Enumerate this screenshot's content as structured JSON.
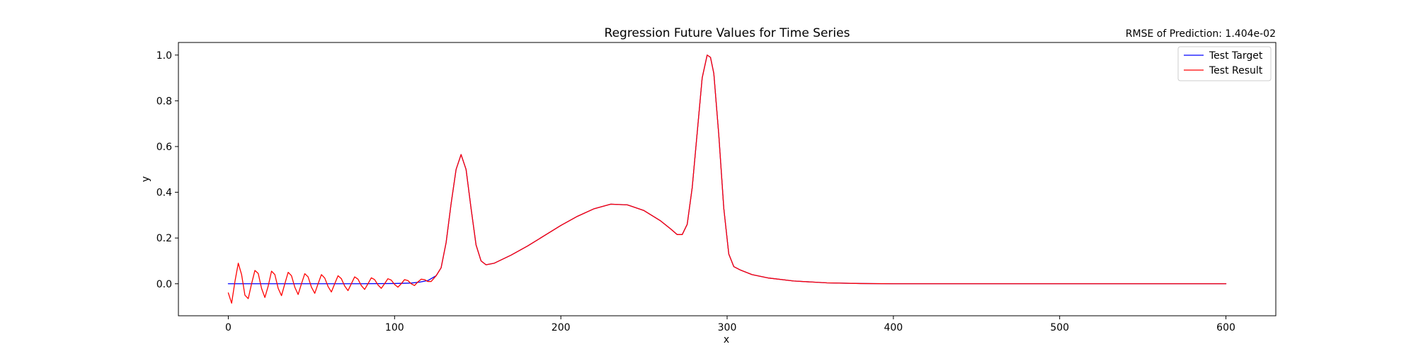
{
  "chart_data": {
    "type": "line",
    "title": "Regression Future Values for Time Series",
    "annotation": "RMSE of Prediction: 1.404e-02",
    "xlabel": "x",
    "ylabel": "y",
    "xlim": [
      -30,
      630
    ],
    "ylim": [
      -0.14,
      1.055
    ],
    "xticks": [
      0,
      100,
      200,
      300,
      400,
      500,
      600
    ],
    "xtick_labels": [
      "0",
      "100",
      "200",
      "300",
      "400",
      "500",
      "600"
    ],
    "yticks": [
      0.0,
      0.2,
      0.4,
      0.6,
      0.8,
      1.0
    ],
    "ytick_labels": [
      "0.0",
      "0.2",
      "0.4",
      "0.6",
      "0.8",
      "1.0"
    ],
    "grid": false,
    "legend_position": "top-right",
    "series": [
      {
        "name": "Test Target",
        "color": "#0000ff",
        "x": [
          0,
          20,
          40,
          60,
          80,
          100,
          110,
          115,
          120,
          125,
          128,
          131,
          134,
          137,
          140,
          143,
          146,
          149,
          152,
          155,
          160,
          170,
          180,
          190,
          200,
          210,
          220,
          230,
          240,
          250,
          260,
          266,
          270,
          273,
          276,
          279,
          282,
          285,
          288,
          290,
          292,
          295,
          298,
          301,
          304,
          308,
          315,
          325,
          340,
          360,
          380,
          400,
          450,
          500,
          550,
          600
        ],
        "y": [
          0.0,
          0.0,
          0.0,
          0.0,
          0.0,
          0.001,
          0.003,
          0.007,
          0.014,
          0.035,
          0.07,
          0.18,
          0.35,
          0.5,
          0.565,
          0.5,
          0.33,
          0.17,
          0.1,
          0.083,
          0.09,
          0.125,
          0.165,
          0.21,
          0.255,
          0.295,
          0.328,
          0.348,
          0.345,
          0.32,
          0.275,
          0.24,
          0.215,
          0.215,
          0.26,
          0.42,
          0.66,
          0.9,
          1.0,
          0.99,
          0.92,
          0.65,
          0.33,
          0.13,
          0.075,
          0.06,
          0.04,
          0.025,
          0.012,
          0.004,
          0.001,
          0.0,
          0.0,
          0.0,
          0.0,
          0.0
        ]
      },
      {
        "name": "Test Result",
        "color": "#ff0000",
        "x": [
          0,
          2,
          4,
          6,
          8,
          10,
          12,
          14,
          16,
          18,
          20,
          22,
          24,
          26,
          28,
          30,
          32,
          34,
          36,
          38,
          40,
          42,
          44,
          46,
          48,
          50,
          52,
          54,
          56,
          58,
          60,
          62,
          64,
          66,
          68,
          70,
          72,
          74,
          76,
          78,
          80,
          82,
          84,
          86,
          88,
          90,
          92,
          94,
          96,
          98,
          100,
          102,
          104,
          106,
          108,
          110,
          112,
          114,
          116,
          118,
          120,
          122,
          125,
          128,
          131,
          134,
          137,
          140,
          143,
          146,
          149,
          152,
          155,
          160,
          170,
          180,
          190,
          200,
          210,
          220,
          230,
          240,
          250,
          260,
          266,
          270,
          273,
          276,
          279,
          282,
          285,
          288,
          290,
          292,
          295,
          298,
          301,
          304,
          308,
          315,
          325,
          340,
          360,
          380,
          400,
          450,
          500,
          550,
          600
        ],
        "y": [
          -0.04,
          -0.085,
          0.01,
          0.09,
          0.04,
          -0.05,
          -0.065,
          0.0,
          0.058,
          0.045,
          -0.02,
          -0.06,
          -0.01,
          0.055,
          0.04,
          -0.02,
          -0.052,
          0.0,
          0.05,
          0.035,
          -0.015,
          -0.047,
          0.0,
          0.044,
          0.03,
          -0.015,
          -0.042,
          0.0,
          0.04,
          0.025,
          -0.012,
          -0.036,
          0.0,
          0.035,
          0.022,
          -0.01,
          -0.03,
          0.0,
          0.03,
          0.02,
          -0.008,
          -0.025,
          0.0,
          0.026,
          0.018,
          -0.005,
          -0.02,
          0.0,
          0.022,
          0.016,
          -0.003,
          -0.015,
          0.0,
          0.018,
          0.014,
          0.0,
          -0.008,
          0.008,
          0.02,
          0.018,
          0.01,
          0.01,
          0.035,
          0.07,
          0.18,
          0.35,
          0.5,
          0.565,
          0.5,
          0.33,
          0.17,
          0.1,
          0.083,
          0.09,
          0.125,
          0.165,
          0.21,
          0.255,
          0.295,
          0.328,
          0.348,
          0.345,
          0.32,
          0.275,
          0.24,
          0.215,
          0.215,
          0.26,
          0.42,
          0.66,
          0.9,
          1.0,
          0.99,
          0.92,
          0.65,
          0.33,
          0.13,
          0.075,
          0.06,
          0.04,
          0.025,
          0.012,
          0.004,
          0.001,
          0.0,
          0.0,
          0.0,
          0.0,
          0.0
        ]
      }
    ]
  }
}
